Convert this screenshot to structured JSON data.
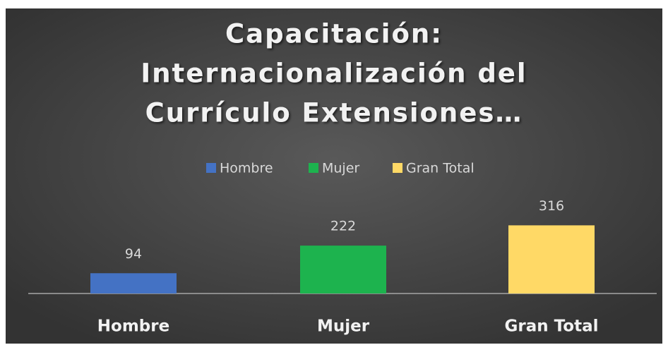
{
  "chart_data": {
    "type": "bar",
    "title": [
      "Capacitación:",
      "Internacionalización del",
      "Currículo   Extensiones…"
    ],
    "categories": [
      "Hombre",
      "Mujer",
      "Gran Total"
    ],
    "values": [
      94,
      222,
      316
    ],
    "colors": [
      "#4472c4",
      "#1db34e",
      "#ffd966"
    ],
    "ylim": [
      0,
      350
    ],
    "legend": "top"
  }
}
